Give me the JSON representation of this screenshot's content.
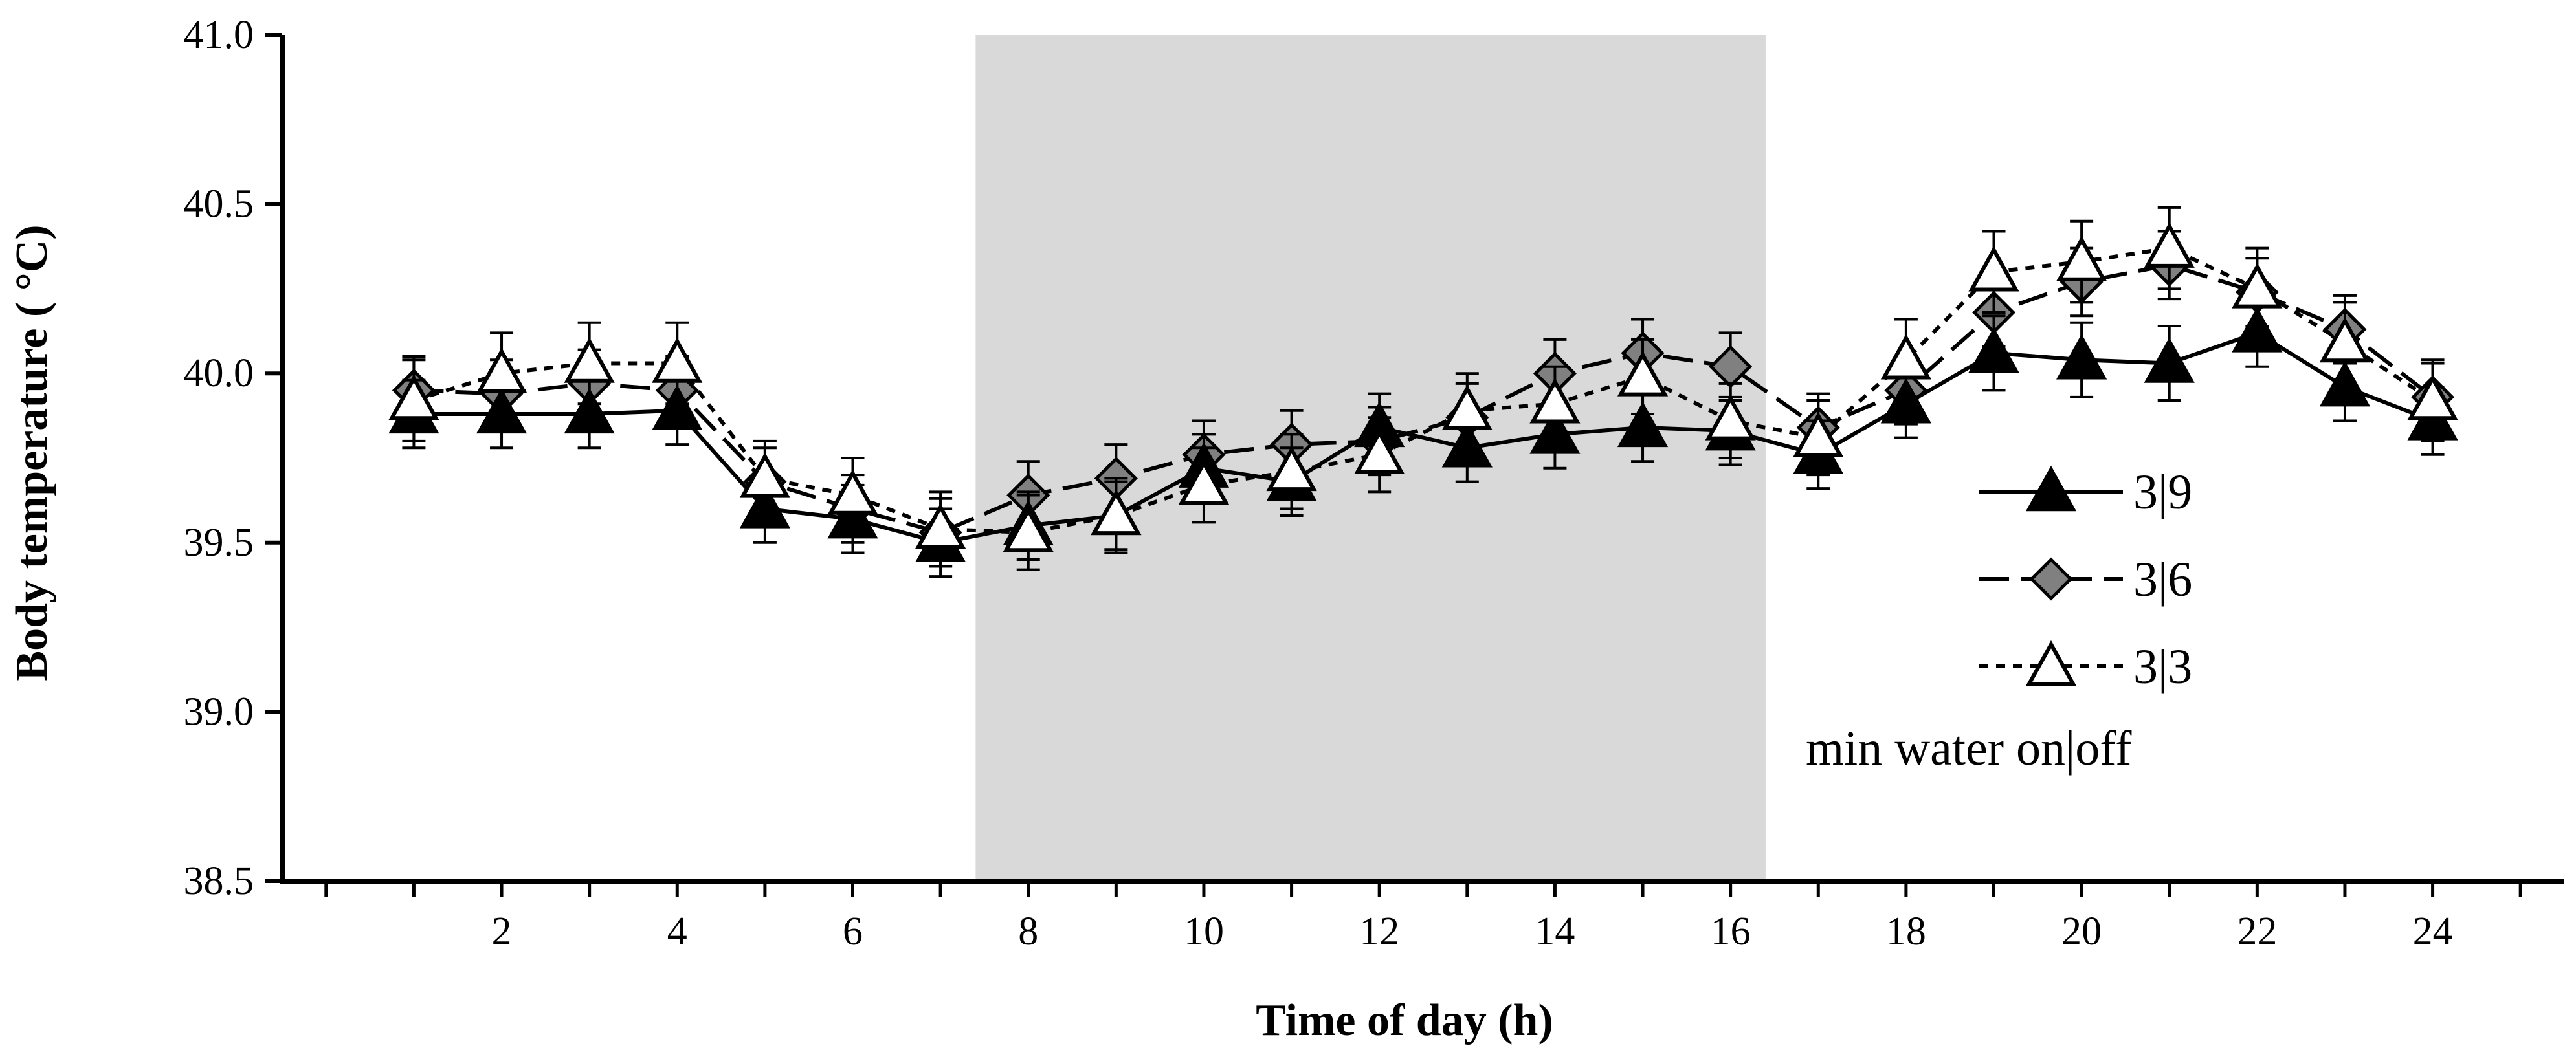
{
  "chart_data": {
    "type": "line",
    "title": "",
    "xlabel": "Time of  day (h)",
    "ylabel": "Body temperature ( °C)",
    "xlim": [
      -0.5,
      25.5
    ],
    "ylim": [
      38.5,
      41.0
    ],
    "x_ticks": [
      2,
      4,
      6,
      8,
      10,
      12,
      14,
      16,
      18,
      20,
      22,
      24
    ],
    "x_tick_labels": [
      "2",
      "4",
      "6",
      "8",
      "10",
      "12",
      "14",
      "16",
      "18",
      "20",
      "22",
      "24"
    ],
    "y_ticks": [
      38.5,
      39.0,
      39.5,
      40.0,
      40.5,
      41.0
    ],
    "y_tick_labels": [
      "38.5",
      "39.0",
      "39.5",
      "40.0",
      "40.5",
      "41.0"
    ],
    "shaded_region": {
      "x_start": 7.4,
      "x_end": 16.4,
      "color": "#d9d9d9"
    },
    "legend_position": "right",
    "legend_note": "min water on|off",
    "x": [
      1,
      2,
      3,
      4,
      5,
      6,
      7,
      8,
      9,
      10,
      11,
      12,
      13,
      14,
      15,
      16,
      17,
      18,
      19,
      20,
      21,
      22,
      23,
      24
    ],
    "series": [
      {
        "name": "3|9",
        "marker": "filled-triangle",
        "line_style": "solid",
        "color": "#000000",
        "values": [
          39.88,
          39.88,
          39.88,
          39.89,
          39.6,
          39.57,
          39.5,
          39.55,
          39.58,
          39.72,
          39.68,
          39.84,
          39.78,
          39.82,
          39.84,
          39.83,
          39.76,
          39.91,
          40.06,
          40.04,
          40.03,
          40.12,
          39.96,
          39.86
        ],
        "errors": [
          0.1,
          0.1,
          0.1,
          0.1,
          0.1,
          0.1,
          0.1,
          0.1,
          0.1,
          0.1,
          0.1,
          0.1,
          0.1,
          0.1,
          0.1,
          0.1,
          0.1,
          0.1,
          0.11,
          0.11,
          0.11,
          0.1,
          0.1,
          0.1
        ]
      },
      {
        "name": "3|6",
        "marker": "grey-diamond",
        "line_style": "dashed",
        "color": "#808080",
        "values": [
          39.95,
          39.94,
          39.97,
          39.95,
          39.68,
          39.6,
          39.53,
          39.64,
          39.69,
          39.76,
          39.79,
          39.8,
          39.87,
          40.0,
          40.06,
          40.02,
          39.84,
          39.95,
          40.18,
          40.27,
          40.32,
          40.24,
          40.13,
          39.93
        ],
        "errors": [
          0.1,
          0.1,
          0.1,
          0.1,
          0.1,
          0.1,
          0.1,
          0.1,
          0.1,
          0.1,
          0.1,
          0.1,
          0.1,
          0.1,
          0.1,
          0.1,
          0.1,
          0.1,
          0.1,
          0.1,
          0.1,
          0.1,
          0.1,
          0.1
        ]
      },
      {
        "name": "3|3",
        "marker": "open-triangle",
        "line_style": "dotted",
        "color": "#000000",
        "values": [
          39.92,
          40.0,
          40.03,
          40.03,
          39.69,
          39.64,
          39.54,
          39.53,
          39.58,
          39.67,
          39.71,
          39.76,
          39.89,
          39.91,
          39.99,
          39.86,
          39.81,
          40.04,
          40.3,
          40.33,
          40.37,
          40.25,
          40.09,
          39.92
        ],
        "errors": [
          0.12,
          0.12,
          0.12,
          0.12,
          0.11,
          0.11,
          0.11,
          0.11,
          0.11,
          0.11,
          0.11,
          0.11,
          0.11,
          0.11,
          0.11,
          0.11,
          0.11,
          0.12,
          0.12,
          0.12,
          0.12,
          0.12,
          0.12,
          0.12
        ]
      }
    ]
  }
}
